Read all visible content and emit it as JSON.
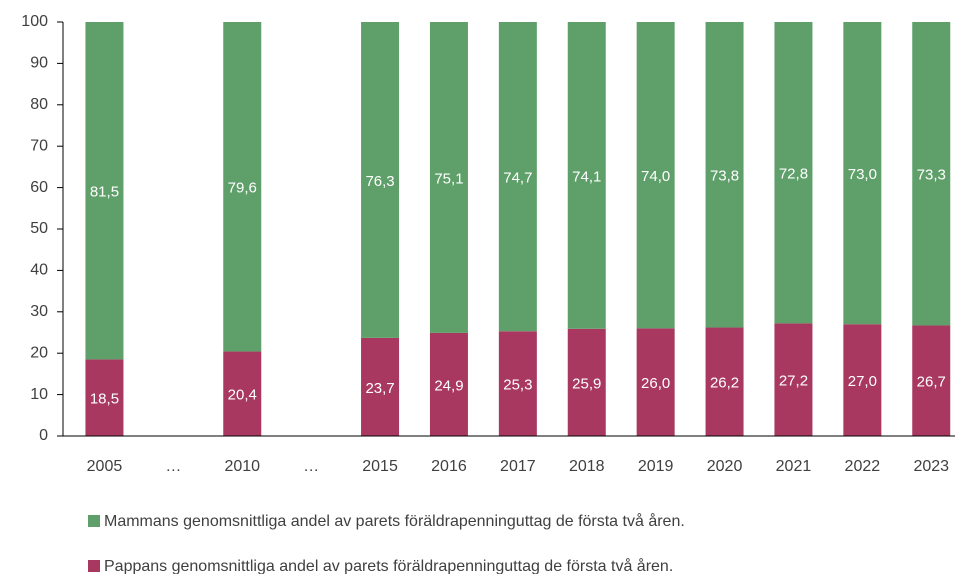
{
  "chart_data": {
    "type": "stacked_bar",
    "categories": [
      "2005",
      "…",
      "2010",
      "…",
      "2015",
      "2016",
      "2017",
      "2018",
      "2019",
      "2020",
      "2021",
      "2022",
      "2023"
    ],
    "series": [
      {
        "name": "Mammans genomsnittliga andel av parets föräldrapenninguttag de första två åren.",
        "color": "#5fa06a",
        "values": [
          81.5,
          null,
          79.6,
          null,
          76.3,
          75.1,
          74.7,
          74.1,
          74.0,
          73.8,
          72.8,
          73.0,
          73.3
        ],
        "value_labels": [
          "81,5",
          null,
          "79,6",
          null,
          "76,3",
          "75,1",
          "74,7",
          "74,1",
          "74,0",
          "73,8",
          "72,8",
          "73,0",
          "73,3"
        ]
      },
      {
        "name": "Pappans genomsnittliga andel av parets föräldrapenninguttag de första två åren.",
        "color": "#a8385f",
        "values": [
          18.5,
          null,
          20.4,
          null,
          23.7,
          24.9,
          25.3,
          25.9,
          26.0,
          26.2,
          27.2,
          27.0,
          26.7
        ],
        "value_labels": [
          "18,5",
          null,
          "20,4",
          null,
          "23,7",
          "24,9",
          "25,3",
          "25,9",
          "26,0",
          "26,2",
          "27,2",
          "27,0",
          "26,7"
        ]
      }
    ],
    "ylim": [
      0,
      100
    ],
    "yticks": [
      0,
      10,
      20,
      30,
      40,
      50,
      60,
      70,
      80,
      90,
      100
    ],
    "grid": false
  }
}
